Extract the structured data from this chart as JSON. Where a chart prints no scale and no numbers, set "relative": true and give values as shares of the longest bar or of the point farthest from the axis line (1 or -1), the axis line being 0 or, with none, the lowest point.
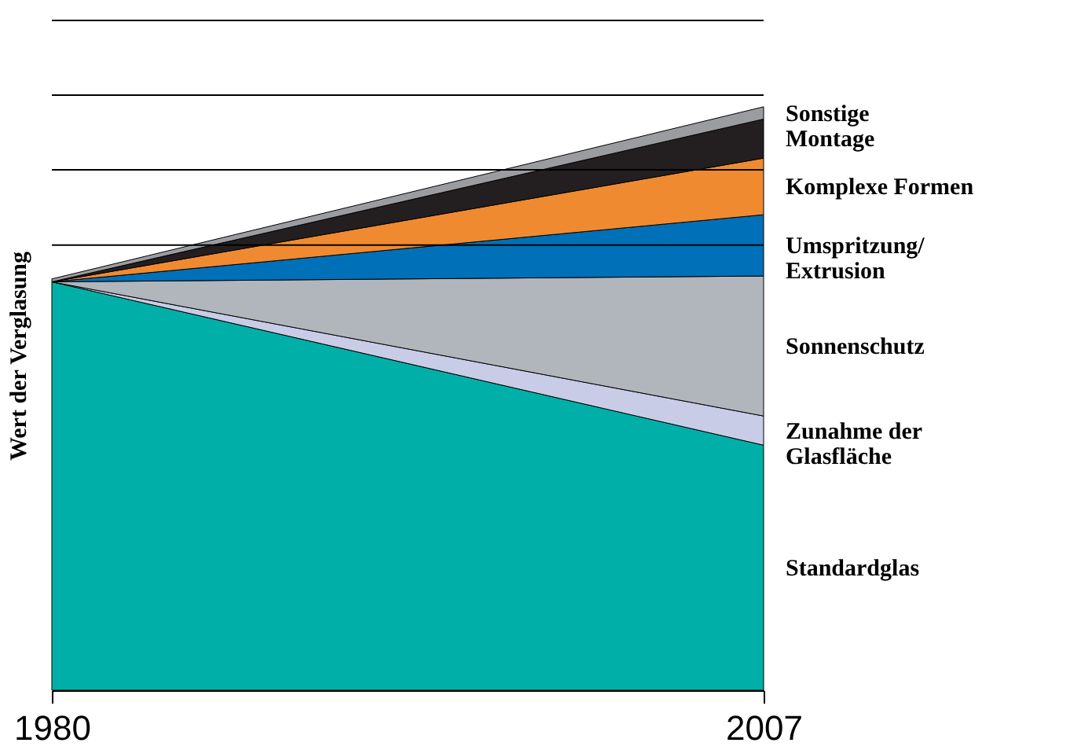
{
  "chart_data": {
    "type": "area",
    "stacked": true,
    "relative": true,
    "ylabel": "Wert der Verglasung",
    "x": [
      1980,
      2007
    ],
    "xlim": [
      1980,
      2007
    ],
    "xticks": [
      1980,
      2007
    ],
    "grid": false,
    "legend": false,
    "series": [
      {
        "name": "Standardglas",
        "color": "#00b0a8",
        "values": [
          0.7,
          0.42
        ]
      },
      {
        "name": "Zunahme der\nGlasfläche",
        "color": "#c8cce6",
        "values": [
          0,
          0.05
        ]
      },
      {
        "name": "Sonnenschutz",
        "color": "#b1b6bd",
        "values": [
          0,
          0.24
        ]
      },
      {
        "name": "Umspritzung/\nExtrusion",
        "color": "#0070b8",
        "values": [
          0,
          0.105
        ]
      },
      {
        "name": "Komplexe Formen",
        "color": "#f08a30",
        "values": [
          0,
          0.097
        ]
      },
      {
        "name": "Montage",
        "color": "#231f20",
        "values": [
          0,
          0.067
        ]
      },
      {
        "name": "Sonstige",
        "color": "#9a9ca0",
        "values": [
          0.005,
          0.021
        ]
      }
    ],
    "ref_lines": [
      {
        "axis": "y",
        "value": 0.763,
        "label": null,
        "color": "#000000"
      },
      {
        "axis": "y",
        "value": 0.892,
        "label": null,
        "color": "#000000"
      },
      {
        "axis": "y",
        "value": 1.02,
        "label": null,
        "color": "#000000"
      },
      {
        "axis": "y",
        "value": 1.148,
        "label": null,
        "color": "#000000"
      }
    ]
  }
}
